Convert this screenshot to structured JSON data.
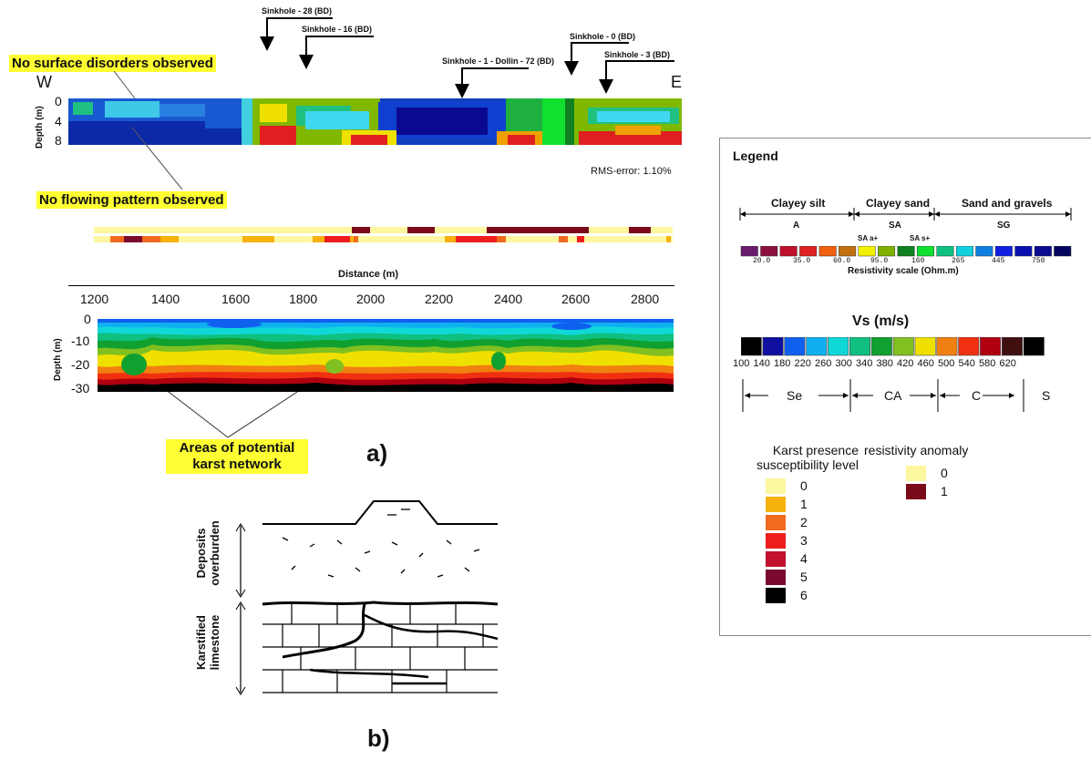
{
  "profile_top": {
    "west": "W",
    "east": "E",
    "no_surface": "No surface disorders observed",
    "no_flowing": "No flowing pattern observed",
    "rms": "RMS-error: 1.10%",
    "ylabel": "Depth (m)",
    "yticks": [
      "0",
      "4",
      "8"
    ],
    "sinkholes": [
      "Sinkhole - 28 (BD)",
      "Sinkhole - 16 (BD)",
      "Sinkhole - 1 - Dollin - 72 (BD)",
      "Sinkhole - 0 (BD)",
      "Sinkhole - 3 (BD)"
    ]
  },
  "profile_bottom": {
    "xlabel": "Distance (m)",
    "xticks": [
      "1200",
      "1400",
      "1600",
      "1800",
      "2000",
      "2200",
      "2400",
      "2600",
      "2800"
    ],
    "ylabel": "Depth (m)",
    "yticks": [
      "0",
      "-10",
      "-20",
      "-30"
    ],
    "areas": "Areas of potential karst network"
  },
  "panel_labels": {
    "a": "a)",
    "b": "b)"
  },
  "sketch": {
    "upper": "Deposits overburden",
    "lower": "Karstified limestone"
  },
  "legend": {
    "title": "Legend",
    "resistivity": {
      "groups": [
        {
          "name": "Clayey silt",
          "code": "A"
        },
        {
          "name": "Clayey sand",
          "code": "SA"
        },
        {
          "name": "Sand and gravels",
          "code": "SG"
        }
      ],
      "sub_left": "SA a+",
      "sub_right": "SA s+",
      "tick_labels": [
        "20.0",
        "35.0",
        "60.0",
        "95.0",
        "160",
        "265",
        "445",
        "750"
      ],
      "colors": [
        "#6a1b6e",
        "#8b1040",
        "#c0102a",
        "#e02020",
        "#f06010",
        "#c07010",
        "#f0f000",
        "#80b000",
        "#108020",
        "#10e030",
        "#10c080",
        "#10d0e0",
        "#1080e0",
        "#1020e0",
        "#0a10b0",
        "#0a0a90",
        "#050560"
      ],
      "scale_label": "Resistivity scale (Ohm.m)"
    },
    "vs": {
      "title": "Vs (m/s)",
      "colors": [
        "#000000",
        "#1010a0",
        "#1060f0",
        "#10b0f0",
        "#10d8d8",
        "#10c080",
        "#10a030",
        "#80c020",
        "#f0e000",
        "#f08010",
        "#f03010",
        "#b00010",
        "#401010",
        "#000000"
      ],
      "tick_labels": [
        "100",
        "140",
        "180",
        "220",
        "260",
        "300",
        "340",
        "380",
        "420",
        "460",
        "500",
        "540",
        "580",
        "620"
      ],
      "classes": [
        "Se",
        "CA",
        "C",
        "S"
      ]
    },
    "karst": {
      "title_line1": "Karst presence",
      "title_line2": "susceptibility level",
      "levels": [
        "0",
        "1",
        "2",
        "3",
        "4",
        "5",
        "6"
      ],
      "colors": [
        "#fdf7a0",
        "#f6b10a",
        "#f26a1e",
        "#ee1e1e",
        "#c2102e",
        "#7a0a2e",
        "#000000"
      ]
    },
    "anomaly": {
      "title": "resistivity anomaly",
      "levels": [
        "0",
        "1"
      ],
      "colors": [
        "#fdf7a0",
        "#7a0a1a"
      ]
    }
  }
}
